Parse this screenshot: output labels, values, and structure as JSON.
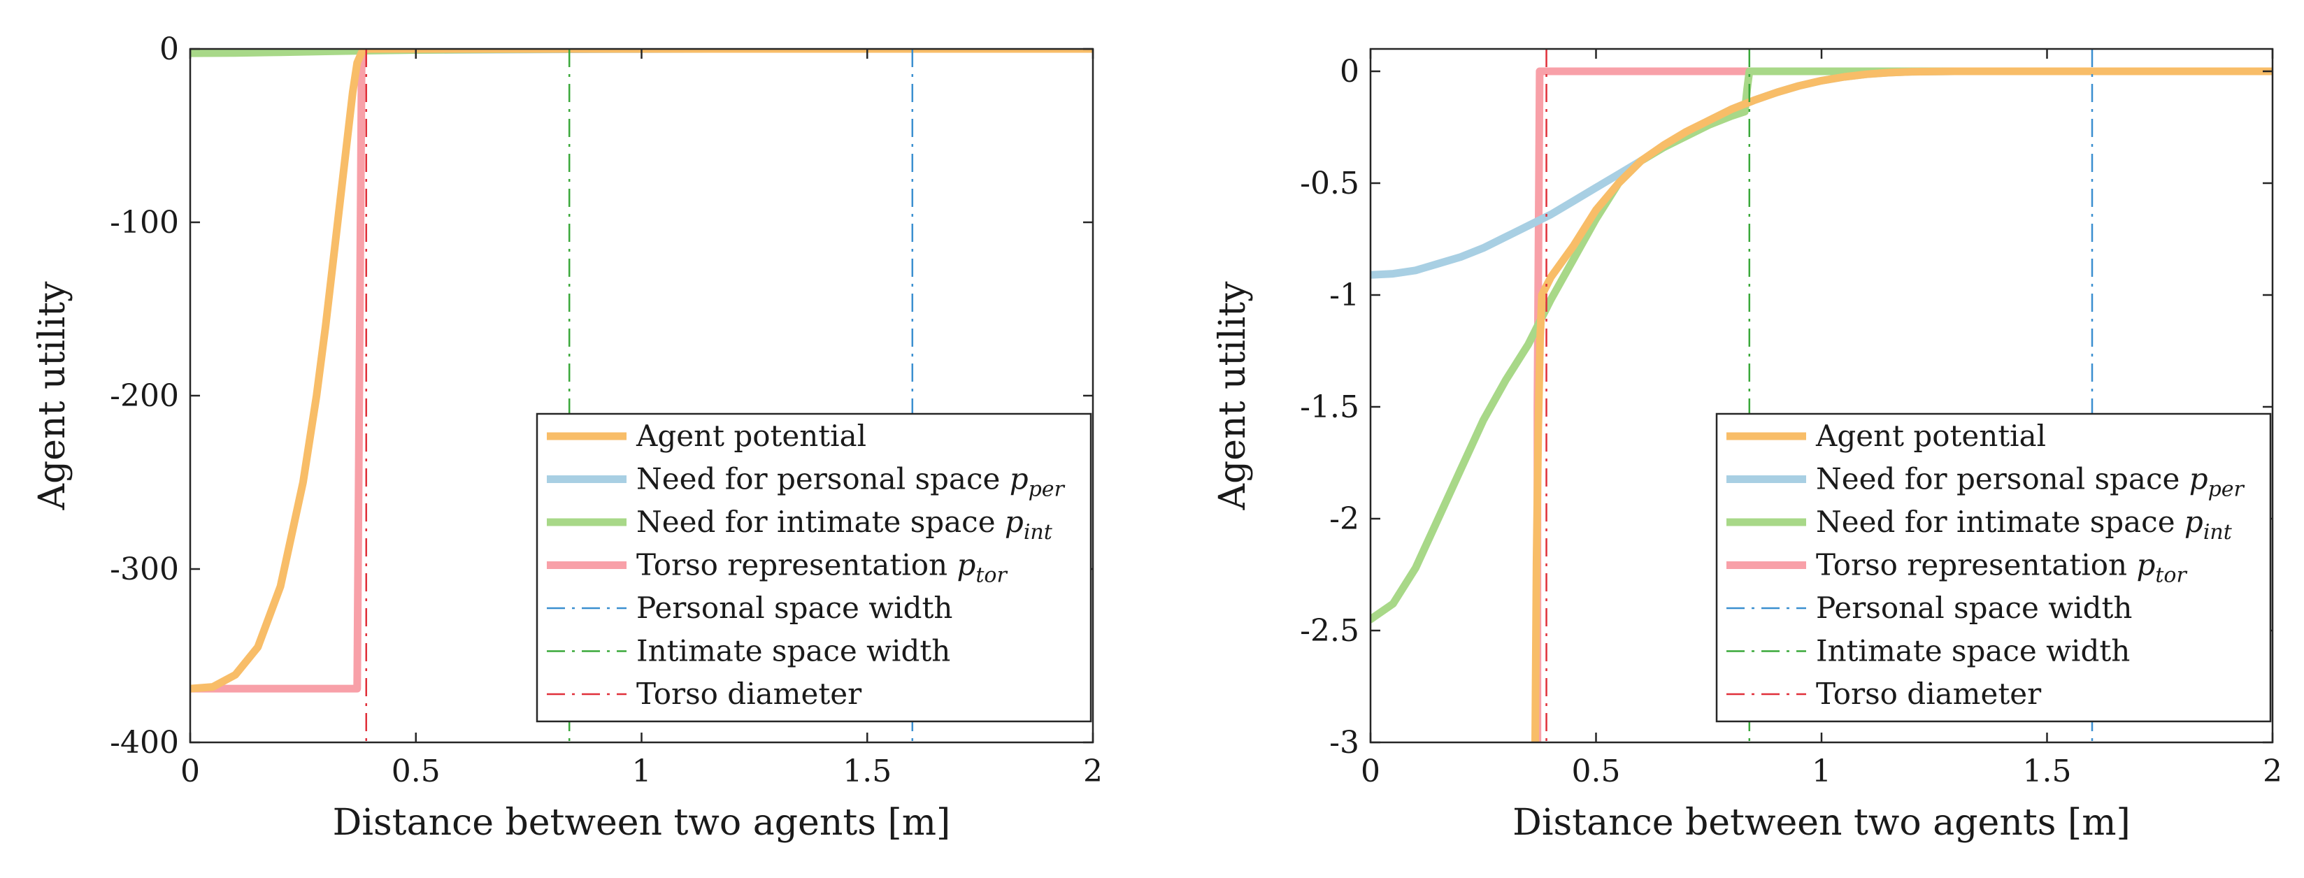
{
  "chart_data": [
    {
      "type": "line",
      "title": "",
      "xlabel": "Distance between two agents [m]",
      "ylabel": "Agent utility",
      "xlim": [
        0,
        2
      ],
      "ylim": [
        -400,
        0
      ],
      "xticks": [
        0,
        0.5,
        1,
        1.5,
        2
      ],
      "xtick_labels": [
        "0",
        "0.5",
        "1",
        "1.5",
        "2"
      ],
      "yticks": [
        0,
        -100,
        -200,
        -300,
        -400
      ],
      "ytick_labels": [
        "0",
        "-100",
        "-200",
        "-300",
        "-400"
      ],
      "grid": false,
      "legend_position": "bottom-right",
      "series": [
        {
          "name": "Agent potential",
          "color": "#f8bd68",
          "style": "solid",
          "x": [
            0,
            0.05,
            0.1,
            0.15,
            0.2,
            0.25,
            0.28,
            0.3,
            0.32,
            0.34,
            0.36,
            0.37,
            0.38,
            0.39,
            0.5,
            1,
            1.5,
            2
          ],
          "y": [
            -369,
            -368,
            -361,
            -345,
            -310,
            -250,
            -200,
            -160,
            -115,
            -70,
            -25,
            -8,
            -2,
            0,
            0,
            0,
            0,
            0
          ]
        },
        {
          "name": "Need for personal space ",
          "sub": "per",
          "color": "#a8cfe3",
          "style": "solid",
          "x": [
            0,
            0.2,
            0.4,
            0.6,
            0.8,
            1,
            1.2,
            1.4,
            1.6,
            2
          ],
          "y": [
            -0.9,
            -0.85,
            -0.72,
            -0.5,
            -0.25,
            -0.08,
            0,
            0,
            0,
            0
          ]
        },
        {
          "name": "Need for intimate space ",
          "sub": "int",
          "color": "#a8d888",
          "style": "solid",
          "x": [
            0,
            0.1,
            0.2,
            0.3,
            0.4,
            0.5,
            0.6,
            0.7,
            0.84,
            2
          ],
          "y": [
            -2.45,
            -2.3,
            -1.9,
            -1.4,
            -0.95,
            -0.62,
            -0.35,
            -0.15,
            0,
            0
          ]
        },
        {
          "name": "Torso representation ",
          "sub": "tor",
          "color": "#f8a0a8",
          "style": "solid",
          "x": [
            0,
            0.37,
            0.38,
            0.39,
            2
          ],
          "y": [
            -369,
            -369,
            -3,
            0,
            0
          ]
        },
        {
          "name": "Personal space width",
          "color": "#3b8fd0",
          "style": "dashdot",
          "vline": 1.6
        },
        {
          "name": "Intimate space width",
          "color": "#3aa83a",
          "style": "dashdot",
          "vline": 0.84
        },
        {
          "name": "Torso diameter",
          "color": "#e0303a",
          "style": "dashdot",
          "vline": 0.39
        }
      ]
    },
    {
      "type": "line",
      "title": "",
      "xlabel": "Distance between two agents [m]",
      "ylabel": "Agent utility",
      "xlim": [
        0,
        2
      ],
      "ylim": [
        -3,
        0.1
      ],
      "xticks": [
        0,
        0.5,
        1,
        1.5,
        2
      ],
      "xtick_labels": [
        "0",
        "0.5",
        "1",
        "1.5",
        "2"
      ],
      "yticks": [
        0,
        -0.5,
        -1,
        -1.5,
        -2,
        -2.5,
        -3
      ],
      "ytick_labels": [
        "0",
        "-0.5",
        "-1",
        "-1.5",
        "-2",
        "-2.5",
        "-3"
      ],
      "grid": false,
      "legend_position": "bottom-right",
      "series": [
        {
          "name": "Agent potential",
          "color": "#f8bd68",
          "style": "solid",
          "x": [
            0.365,
            0.368,
            0.372,
            0.376,
            0.38,
            0.4,
            0.45,
            0.5,
            0.55,
            0.6,
            0.65,
            0.7,
            0.75,
            0.8,
            0.85,
            0.9,
            0.95,
            1,
            1.05,
            1.1,
            1.15,
            1.2,
            1.3,
            1.5,
            2
          ],
          "y": [
            -3.05,
            -2.2,
            -1.6,
            -1.2,
            -1.0,
            -0.92,
            -0.78,
            -0.62,
            -0.5,
            -0.4,
            -0.33,
            -0.27,
            -0.22,
            -0.17,
            -0.13,
            -0.095,
            -0.065,
            -0.042,
            -0.025,
            -0.013,
            -0.006,
            -0.002,
            0,
            0,
            0
          ]
        },
        {
          "name": "Need for personal space ",
          "sub": "per",
          "color": "#a8cfe3",
          "style": "solid",
          "x": [
            0,
            0.05,
            0.1,
            0.15,
            0.2,
            0.25,
            0.3,
            0.35,
            0.4,
            0.45,
            0.5,
            0.55,
            0.6,
            0.65,
            0.7,
            0.75,
            0.8,
            0.85,
            0.9,
            0.95,
            1,
            1.05,
            1.1,
            1.15,
            1.2,
            1.3,
            1.6,
            2
          ],
          "y": [
            -0.91,
            -0.905,
            -0.89,
            -0.86,
            -0.83,
            -0.79,
            -0.74,
            -0.69,
            -0.64,
            -0.58,
            -0.52,
            -0.46,
            -0.4,
            -0.34,
            -0.28,
            -0.22,
            -0.17,
            -0.13,
            -0.095,
            -0.065,
            -0.042,
            -0.025,
            -0.013,
            -0.006,
            -0.002,
            0,
            0,
            0
          ]
        },
        {
          "name": "Need for intimate space ",
          "sub": "int",
          "color": "#a8d888",
          "style": "solid",
          "x": [
            0,
            0.05,
            0.1,
            0.15,
            0.2,
            0.25,
            0.3,
            0.35,
            0.4,
            0.45,
            0.5,
            0.55,
            0.6,
            0.65,
            0.7,
            0.75,
            0.8,
            0.83,
            0.835,
            0.84,
            2
          ],
          "y": [
            -2.45,
            -2.38,
            -2.22,
            -2.0,
            -1.78,
            -1.56,
            -1.38,
            -1.22,
            -1.02,
            -0.84,
            -0.66,
            -0.5,
            -0.4,
            -0.34,
            -0.29,
            -0.24,
            -0.2,
            -0.18,
            -0.08,
            0,
            0
          ]
        },
        {
          "name": "Torso representation ",
          "sub": "tor",
          "color": "#f8a0a8",
          "style": "solid",
          "x": [
            0.37,
            0.37,
            0.375,
            2
          ],
          "y": [
            -3.05,
            -1.5,
            0,
            0
          ]
        },
        {
          "name": "Personal space width",
          "color": "#3b8fd0",
          "style": "dashdot",
          "vline": 1.6
        },
        {
          "name": "Intimate space width",
          "color": "#3aa83a",
          "style": "dashdot",
          "vline": 0.84
        },
        {
          "name": "Torso diameter",
          "color": "#e0303a",
          "style": "dashdot",
          "vline": 0.39
        }
      ]
    }
  ]
}
